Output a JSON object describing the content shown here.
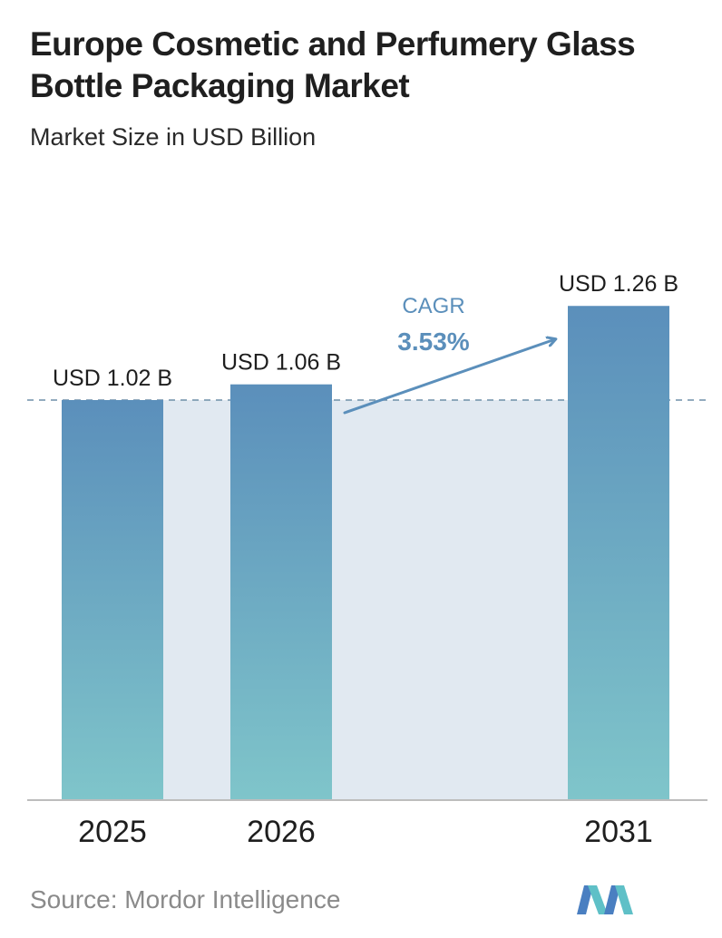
{
  "title": "Europe Cosmetic and Perfumery Glass Bottle Packaging Market",
  "subtitle": "Market Size in USD Billion",
  "source": "Source:  Mordor Intelligence",
  "colors": {
    "bar_top": "#5b8fbb",
    "bar_bottom": "#7fc5ca",
    "band": "#e1e9f1",
    "reference_line": "#6f8fa8",
    "cagr": "#5b8fbb",
    "baseline": "#bdbdbd"
  },
  "chart_data": {
    "type": "bar",
    "categories": [
      "2025",
      "2026",
      "2031"
    ],
    "values": [
      1.02,
      1.06,
      1.26
    ],
    "value_labels": [
      "USD 1.02 B",
      "USD 1.06 B",
      "USD 1.26 B"
    ],
    "ylabel": "",
    "xlabel": "",
    "reference_line": 1.02,
    "annotation": {
      "label": "CAGR",
      "value": "3.53%"
    },
    "grid": false
  }
}
